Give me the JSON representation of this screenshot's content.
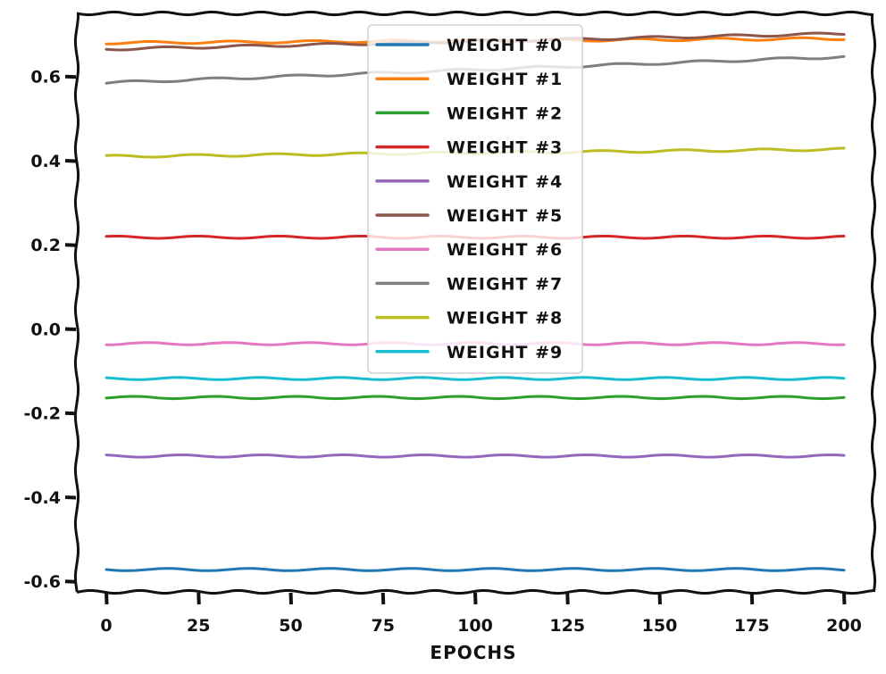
{
  "chart_data": {
    "type": "line",
    "title": "",
    "xlabel": "EPOCHS",
    "ylabel": "",
    "xlim": [
      -8,
      208
    ],
    "ylim": [
      -0.625,
      0.75
    ],
    "xticks": [
      0,
      25,
      50,
      75,
      100,
      125,
      150,
      175,
      200
    ],
    "yticks": [
      -0.6,
      -0.4,
      -0.2,
      0.0,
      0.2,
      0.4,
      0.6
    ],
    "xtick_labels": [
      "0",
      "25",
      "50",
      "75",
      "100",
      "125",
      "150",
      "175",
      "200"
    ],
    "ytick_labels": [
      "-0.6",
      "-0.4",
      "-0.2",
      "0.0",
      "0.2",
      "0.4",
      "0.6"
    ],
    "grid": false,
    "legend_position": "top-center",
    "style": "xkcd",
    "x": [
      0,
      200
    ],
    "series": [
      {
        "name": "WEIGHT #0",
        "color": "#1f77b4",
        "values": [
          -0.572,
          -0.572
        ]
      },
      {
        "name": "WEIGHT #1",
        "color": "#ff7f0e",
        "values": [
          0.68,
          0.69
        ]
      },
      {
        "name": "WEIGHT #2",
        "color": "#2ca02c",
        "values": [
          -0.163,
          -0.163
        ]
      },
      {
        "name": "WEIGHT #3",
        "color": "#d62728",
        "values": [
          0.218,
          0.218
        ]
      },
      {
        "name": "WEIGHT #4",
        "color": "#9467bd",
        "values": [
          -0.302,
          -0.302
        ]
      },
      {
        "name": "WEIGHT #5",
        "color": "#8c564b",
        "values": [
          0.665,
          0.702
        ]
      },
      {
        "name": "WEIGHT #6",
        "color": "#e377c2",
        "values": [
          -0.035,
          -0.035
        ]
      },
      {
        "name": "WEIGHT #7",
        "color": "#7f7f7f",
        "values": [
          0.585,
          0.647
        ]
      },
      {
        "name": "WEIGHT #8",
        "color": "#bcbd22",
        "values": [
          0.41,
          0.427
        ]
      },
      {
        "name": "WEIGHT #9",
        "color": "#17becf",
        "values": [
          -0.118,
          -0.118
        ]
      }
    ]
  }
}
